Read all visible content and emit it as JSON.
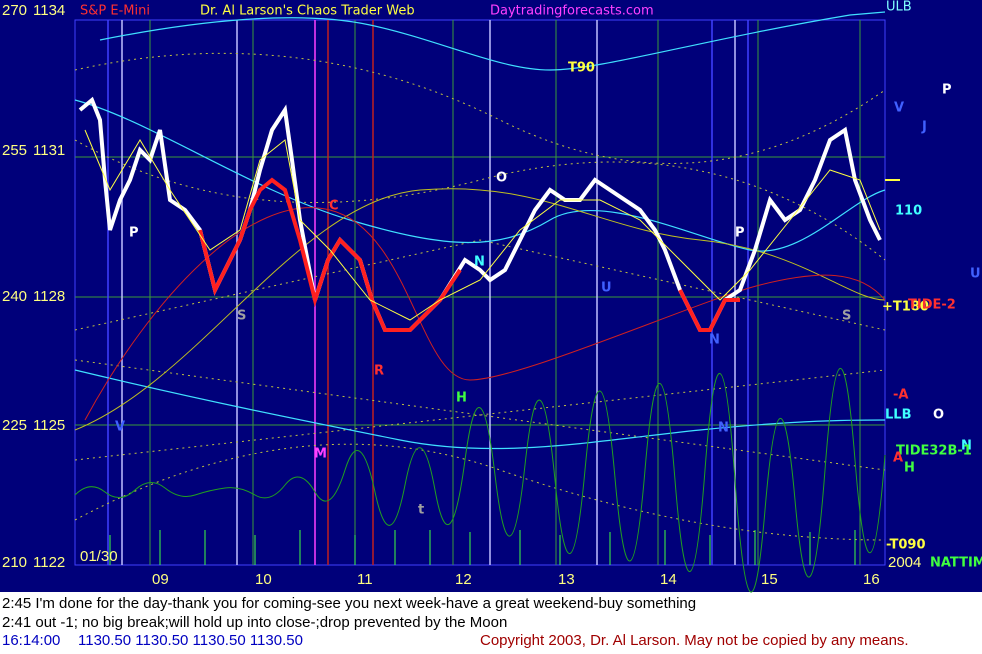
{
  "header": {
    "instrument": "S&P E-Mini",
    "title": "Dr. Al Larson's Chaos Trader Web",
    "website": "Daytradingforecasts.com",
    "band_top": "ULB"
  },
  "price_axis": [
    {
      "left": "270",
      "right": "1134"
    },
    {
      "left": "255",
      "right": "1131"
    },
    {
      "left": "240",
      "right": "1128"
    },
    {
      "left": "225",
      "right": "1125"
    },
    {
      "left": "210",
      "right": "1122"
    }
  ],
  "time_axis": {
    "date": "01/30",
    "hours": [
      "09",
      "10",
      "11",
      "12",
      "13",
      "14",
      "15",
      "16"
    ],
    "year": "2004",
    "mode": "NATTIME"
  },
  "annotations": [
    "P",
    "S",
    "C",
    "R",
    "M",
    "t",
    "H",
    "N",
    "O",
    "U",
    "T90",
    "P",
    "S",
    "N",
    "V",
    "J",
    "P",
    "110",
    "+T180",
    "TIDE-2",
    "U",
    "-A",
    "LLB",
    "O",
    "N",
    "TIDE32B-1",
    "A",
    "H",
    "-T090",
    "V",
    "N"
  ],
  "footer": {
    "line1": "2:45 I'm done for the day-thank you for coming-see you next week-have a great weekend-buy something",
    "line2": "2:41 out -1; no big break;will hold up into close-;drop prevented by the Moon",
    "quote_time": "16:14:00",
    "quote": "1130.50 1130.50 1130.50 1130.50",
    "copyright": "Copyright 2003, Dr. Al Larson. May not be copied by any means."
  }
}
